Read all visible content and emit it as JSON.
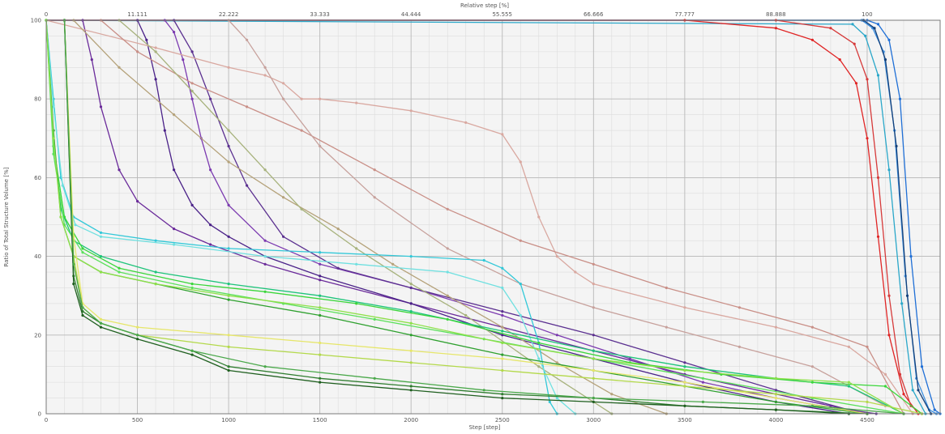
{
  "chart_data": {
    "type": "line",
    "title": "",
    "xlabel": "Step [step]",
    "ylabel": "Ratio of Total Structure Volume [%]",
    "x2label": "Relative step [%]",
    "xlim": [
      0,
      4900
    ],
    "ylim": [
      0,
      100
    ],
    "x2lim": [
      0,
      108.9
    ],
    "x_ticks": [
      0,
      500,
      1000,
      1500,
      2000,
      2500,
      3000,
      3500,
      4000,
      4500
    ],
    "y_ticks": [
      0,
      20,
      40,
      60,
      80,
      100
    ],
    "x2_ticks": [
      "0",
      "11.111",
      "22.222",
      "33.333",
      "44.444",
      "55.555",
      "66.666",
      "77.777",
      "88.888",
      "100"
    ],
    "grid": true,
    "legend": "none",
    "series": [
      {
        "color": "#1f6fd6",
        "marker": true,
        "x": [
          0,
          4500,
          4560,
          4620,
          4680,
          4740,
          4800,
          4870,
          4900
        ],
        "y": [
          100,
          100,
          99,
          95,
          80,
          40,
          12,
          1,
          0
        ]
      },
      {
        "color": "#3c8fe0",
        "marker": true,
        "x": [
          0,
          4470,
          4530,
          4590,
          4650,
          4710,
          4770,
          4840,
          4880
        ],
        "y": [
          100,
          100,
          98,
          92,
          72,
          35,
          9,
          1,
          0
        ]
      },
      {
        "color": "#13407a",
        "marker": true,
        "x": [
          0,
          4480,
          4540,
          4600,
          4660,
          4720,
          4780,
          4850
        ],
        "y": [
          100,
          100,
          98,
          90,
          68,
          30,
          6,
          0
        ]
      },
      {
        "color": "#2aa7c9",
        "marker": true,
        "x": [
          0,
          4420,
          4490,
          4560,
          4620,
          4690,
          4750,
          4820
        ],
        "y": [
          100,
          99,
          96,
          86,
          62,
          28,
          6,
          0
        ]
      },
      {
        "color": "#e02525",
        "marker": true,
        "x": [
          0,
          3500,
          4000,
          4200,
          4350,
          4440,
          4500,
          4560,
          4620,
          4700,
          4780
        ],
        "y": [
          100,
          100,
          98,
          95,
          90,
          84,
          70,
          45,
          20,
          5,
          0
        ]
      },
      {
        "color": "#d63a3a",
        "marker": true,
        "x": [
          0,
          4000,
          4300,
          4430,
          4500,
          4560,
          4620,
          4680,
          4740,
          4800
        ],
        "y": [
          100,
          100,
          98,
          94,
          85,
          60,
          30,
          10,
          2,
          0
        ]
      },
      {
        "color": "#6a2a9a",
        "marker": true,
        "x": [
          200,
          250,
          300,
          400,
          500,
          700,
          900,
          1200,
          1500,
          2000,
          2500,
          3000,
          3500,
          4000,
          4300,
          4500
        ],
        "y": [
          100,
          90,
          78,
          62,
          54,
          47,
          43,
          38,
          34,
          28,
          22,
          16,
          10,
          5,
          2,
          0
        ]
      },
      {
        "color": "#4a2188",
        "marker": true,
        "x": [
          500,
          550,
          600,
          650,
          700,
          800,
          900,
          1000,
          1200,
          1500,
          2000,
          2500,
          3000,
          3500,
          4000,
          4400
        ],
        "y": [
          100,
          95,
          85,
          72,
          62,
          53,
          48,
          45,
          40,
          35,
          28,
          20,
          14,
          8,
          3,
          0
        ]
      },
      {
        "color": "#7b3ab0",
        "marker": true,
        "x": [
          650,
          700,
          750,
          800,
          850,
          900,
          1000,
          1200,
          1500,
          2000,
          2500,
          2800,
          3200,
          3600,
          4000,
          4500
        ],
        "y": [
          100,
          97,
          90,
          80,
          70,
          62,
          53,
          44,
          38,
          32,
          25,
          20,
          14,
          8,
          4,
          0
        ]
      },
      {
        "color": "#5b3090",
        "marker": true,
        "x": [
          700,
          800,
          900,
          1000,
          1100,
          1300,
          1600,
          2000,
          2500,
          3000,
          3500,
          4000,
          4400,
          4550
        ],
        "y": [
          100,
          92,
          80,
          68,
          58,
          45,
          37,
          32,
          26,
          20,
          13,
          6,
          1,
          0
        ]
      },
      {
        "color": "#d9a8a0",
        "marker": true,
        "x": [
          0,
          600,
          1000,
          1200,
          1300,
          1400,
          1500,
          1700,
          2000,
          2300,
          2500,
          2600,
          2700,
          2800,
          2900,
          3000,
          3500,
          4000,
          4400,
          4600,
          4750
        ],
        "y": [
          100,
          93,
          88,
          86,
          84,
          80,
          80,
          79,
          77,
          74,
          71,
          64,
          50,
          40,
          36,
          33,
          27,
          22,
          17,
          10,
          0
        ]
      },
      {
        "color": "#c98f87",
        "marker": true,
        "x": [
          300,
          500,
          800,
          1100,
          1400,
          1800,
          2200,
          2600,
          3000,
          3400,
          3800,
          4200,
          4500,
          4700
        ],
        "y": [
          100,
          92,
          84,
          78,
          72,
          62,
          52,
          44,
          38,
          32,
          27,
          22,
          17,
          0
        ]
      },
      {
        "color": "#c7a19c",
        "marker": true,
        "x": [
          1000,
          1100,
          1200,
          1300,
          1500,
          1800,
          2200,
          2600,
          3000,
          3400,
          3800,
          4200,
          4600
        ],
        "y": [
          100,
          95,
          88,
          80,
          68,
          55,
          42,
          33,
          27,
          22,
          17,
          12,
          2
        ]
      },
      {
        "color": "#b5a27a",
        "marker": true,
        "x": [
          150,
          400,
          700,
          1000,
          1300,
          1600,
          1900,
          2200,
          2500,
          2800,
          3100,
          3400
        ],
        "y": [
          100,
          88,
          76,
          64,
          55,
          47,
          38,
          30,
          22,
          13,
          5,
          0
        ]
      },
      {
        "color": "#a7b27c",
        "marker": true,
        "x": [
          400,
          600,
          800,
          1000,
          1200,
          1400,
          1700,
          2000,
          2300,
          2700,
          3100
        ],
        "y": [
          100,
          92,
          82,
          72,
          62,
          52,
          42,
          33,
          25,
          12,
          0
        ]
      },
      {
        "color": "#32c8d8",
        "marker": true,
        "x": [
          0,
          40,
          80,
          150,
          300,
          600,
          1000,
          1500,
          2000,
          2400,
          2500,
          2600,
          2700,
          2760,
          2800
        ],
        "y": [
          100,
          80,
          60,
          50,
          46,
          44,
          42,
          41,
          40,
          39,
          37,
          33,
          18,
          3,
          0
        ]
      },
      {
        "color": "#6fe0e0",
        "marker": true,
        "x": [
          0,
          40,
          90,
          160,
          300,
          700,
          1200,
          1700,
          2200,
          2500,
          2600,
          2700,
          2800,
          2900
        ],
        "y": [
          100,
          78,
          58,
          48,
          45,
          43,
          40,
          38,
          36,
          32,
          25,
          14,
          4,
          0
        ]
      },
      {
        "color": "#1ec47a",
        "marker": true,
        "x": [
          0,
          40,
          80,
          150,
          300,
          600,
          1000,
          1500,
          2000,
          2500,
          3000,
          3500,
          4000,
          4400,
          4700
        ],
        "y": [
          100,
          70,
          52,
          44,
          40,
          36,
          33,
          30,
          26,
          21,
          16,
          12,
          9,
          7,
          0
        ]
      },
      {
        "color": "#3ad63a",
        "marker": true,
        "x": [
          0,
          40,
          100,
          200,
          400,
          800,
          1200,
          1700,
          2200,
          2700,
          3200,
          3700,
          4200,
          4600,
          4800
        ],
        "y": [
          100,
          68,
          50,
          42,
          37,
          33,
          31,
          28,
          24,
          18,
          13,
          10,
          8,
          7,
          0
        ]
      },
      {
        "color": "#5be05b",
        "marker": true,
        "x": [
          0,
          40,
          100,
          200,
          400,
          800,
          1300,
          1800,
          2400,
          3000,
          3600,
          4200,
          4700
        ],
        "y": [
          100,
          66,
          48,
          41,
          36,
          32,
          28,
          24,
          19,
          14,
          9,
          4,
          0
        ]
      },
      {
        "color": "#2ea02e",
        "marker": true,
        "x": [
          0,
          40,
          80,
          150,
          300,
          600,
          1000,
          1500,
          2000,
          2500,
          3000,
          3500,
          4000,
          4500
        ],
        "y": [
          100,
          72,
          50,
          40,
          36,
          33,
          29,
          25,
          20,
          15,
          11,
          7,
          3,
          0
        ]
      },
      {
        "color": "#8ee04a",
        "marker": true,
        "x": [
          0,
          40,
          80,
          150,
          300,
          600,
          1000,
          1500,
          2000,
          2500,
          3000,
          3500,
          4000,
          4400,
          4700
        ],
        "y": [
          100,
          70,
          50,
          40,
          36,
          33,
          30,
          27,
          23,
          18,
          14,
          11,
          9,
          8,
          0
        ]
      },
      {
        "color": "#e6e66a",
        "marker": true,
        "x": [
          100,
          150,
          200,
          300,
          500,
          1000,
          1500,
          2000,
          2500,
          3000,
          3500,
          4000,
          4500
        ],
        "y": [
          100,
          45,
          28,
          24,
          22,
          20,
          18,
          16,
          14,
          11,
          8,
          4,
          0
        ]
      },
      {
        "color": "#b3d94a",
        "marker": true,
        "x": [
          100,
          150,
          200,
          300,
          500,
          1000,
          1500,
          2000,
          2500,
          3000,
          3500,
          4000,
          4500,
          4800
        ],
        "y": [
          100,
          40,
          27,
          23,
          20,
          17,
          15,
          13,
          11,
          9,
          7,
          5,
          3,
          0
        ]
      },
      {
        "color": "#2f7d2f",
        "marker": true,
        "x": [
          100,
          150,
          200,
          300,
          500,
          800,
          1000,
          1500,
          2000,
          2500,
          3000,
          3500,
          4000,
          4500
        ],
        "y": [
          100,
          35,
          26,
          23,
          20,
          16,
          12,
          9,
          7,
          5,
          4,
          2,
          1,
          0
        ]
      },
      {
        "color": "#1f5f1f",
        "marker": true,
        "x": [
          100,
          150,
          200,
          300,
          500,
          800,
          1000,
          1500,
          2000,
          2500,
          3000,
          3500,
          4000,
          4400
        ],
        "y": [
          100,
          33,
          25,
          22,
          19,
          15,
          11,
          8,
          6,
          4,
          3,
          2,
          1,
          0
        ]
      },
      {
        "color": "#4aa84a",
        "marker": true,
        "x": [
          100,
          150,
          200,
          300,
          500,
          800,
          1200,
          1800,
          2400,
          3000,
          3600,
          4200,
          4700
        ],
        "y": [
          100,
          38,
          27,
          23,
          20,
          16,
          12,
          9,
          6,
          4,
          3,
          2,
          0
        ]
      }
    ]
  }
}
